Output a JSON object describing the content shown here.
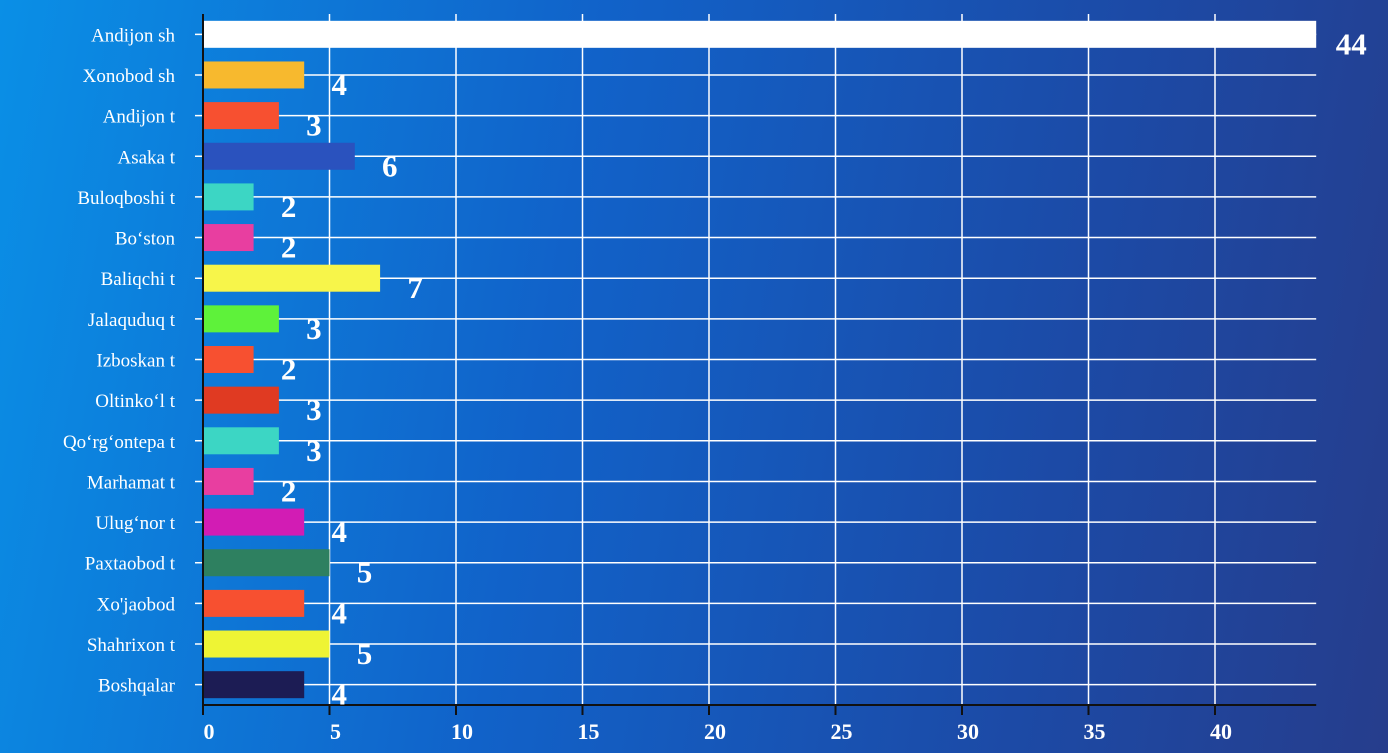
{
  "chart_data": {
    "type": "bar",
    "orientation": "horizontal",
    "categories": [
      "Andijon sh",
      "Xonobod sh",
      "Andijon t",
      "Asaka t",
      "Buloqboshi t",
      "Bo‘ston",
      "Baliqchi t",
      "Jalaquduq t",
      "Izboskan t",
      "Oltinko‘l t",
      "Qo‘rg‘ontepa t",
      "Marhamat t",
      "Ulug‘nor t",
      "Paxtaobod t",
      "Xo'jaobod",
      "Shahrixon t",
      "Boshqalar"
    ],
    "values": [
      44,
      4,
      3,
      6,
      2,
      2,
      7,
      3,
      2,
      3,
      3,
      2,
      4,
      5,
      4,
      5,
      4
    ],
    "colors": [
      "#ffffff",
      "#f7b92e",
      "#f75030",
      "#2a52be",
      "#3cd6c4",
      "#e83ea0",
      "#f7f54a",
      "#5ef23a",
      "#f75030",
      "#e03a22",
      "#3cd6c4",
      "#e83ea0",
      "#d21cb4",
      "#2e8060",
      "#f75030",
      "#eef434",
      "#1c1c54"
    ],
    "xlim": [
      0,
      44
    ],
    "xticks": [
      0,
      5,
      10,
      15,
      20,
      25,
      30,
      35,
      40
    ],
    "grid": true,
    "title": "",
    "xlabel": "",
    "ylabel": ""
  }
}
